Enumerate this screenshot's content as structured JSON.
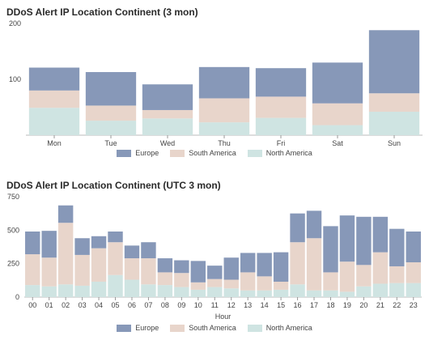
{
  "colors": {
    "europe": "#8798b8",
    "south_america": "#e8d5cb",
    "north_america": "#cfe4e2"
  },
  "chart_data": [
    {
      "type": "bar",
      "stacked": true,
      "title": "DDoS Alert IP Location Continent (3 mon)",
      "xlabel": "",
      "ylabel": "",
      "ylim": [
        0,
        200
      ],
      "yticks": [
        100,
        200
      ],
      "grid": false,
      "legend_position": "bottom",
      "categories": [
        "Mon",
        "Tue",
        "Wed",
        "Thu",
        "Fri",
        "Sat",
        "Sun"
      ],
      "series": [
        {
          "name": "North America",
          "values": [
            49,
            26,
            30,
            23,
            31,
            18,
            42
          ]
        },
        {
          "name": "South America",
          "values": [
            31,
            27,
            15,
            43,
            38,
            39,
            33
          ]
        },
        {
          "name": "Europe",
          "values": [
            41,
            60,
            46,
            56,
            51,
            73,
            113
          ]
        }
      ]
    },
    {
      "type": "bar",
      "stacked": true,
      "title": "DDoS Alert IP Location Continent (UTC 3 mon)",
      "xlabel": "Hour",
      "ylabel": "",
      "ylim": [
        0,
        750
      ],
      "yticks": [
        0,
        250,
        500,
        750
      ],
      "grid": false,
      "legend_position": "bottom",
      "categories": [
        "00",
        "01",
        "02",
        "03",
        "04",
        "05",
        "06",
        "07",
        "08",
        "09",
        "10",
        "11",
        "12",
        "13",
        "14",
        "15",
        "16",
        "17",
        "18",
        "19",
        "20",
        "21",
        "22",
        "23"
      ],
      "series": [
        {
          "name": "North America",
          "values": [
            90,
            80,
            95,
            85,
            115,
            165,
            130,
            95,
            90,
            75,
            55,
            75,
            65,
            50,
            50,
            55,
            95,
            50,
            50,
            40,
            80,
            100,
            105,
            105
          ]
        },
        {
          "name": "South America",
          "values": [
            230,
            215,
            460,
            230,
            250,
            245,
            160,
            195,
            95,
            105,
            55,
            60,
            65,
            135,
            105,
            60,
            315,
            390,
            135,
            225,
            160,
            235,
            125,
            155
          ]
        },
        {
          "name": "Europe",
          "values": [
            170,
            200,
            130,
            125,
            90,
            80,
            95,
            120,
            105,
            95,
            160,
            100,
            165,
            145,
            175,
            220,
            215,
            205,
            345,
            345,
            360,
            265,
            280,
            230
          ]
        }
      ]
    }
  ],
  "legend": {
    "top": [
      "Europe",
      "South America",
      "North America"
    ],
    "bottom": [
      "Europe",
      "South America",
      "North America"
    ]
  }
}
